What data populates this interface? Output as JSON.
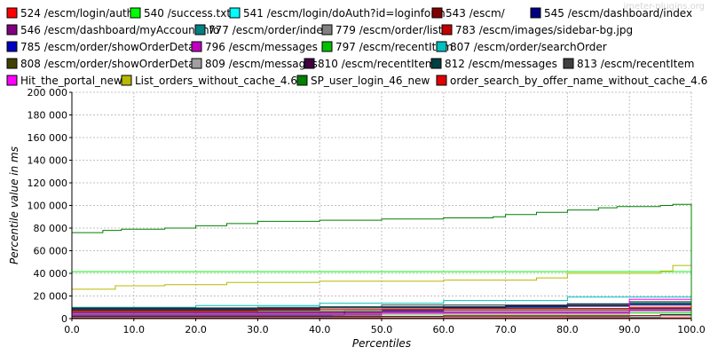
{
  "watermark": "jmeter-plugins.org",
  "chart_data": {
    "type": "line",
    "title": "",
    "xlabel": "Percentiles",
    "ylabel": "Percentile value in ms",
    "xlim": [
      0,
      100
    ],
    "ylim": [
      0,
      200000
    ],
    "x_ticks": [
      0,
      10,
      20,
      30,
      40,
      50,
      60,
      70,
      80,
      90,
      100
    ],
    "x_tick_labels": [
      "0.0",
      "10.0",
      "20.0",
      "30.0",
      "40.0",
      "50.0",
      "60.0",
      "70.0",
      "80.0",
      "90.0",
      "100.0"
    ],
    "y_ticks": [
      0,
      20000,
      40000,
      60000,
      80000,
      100000,
      120000,
      140000,
      160000,
      180000,
      200000
    ],
    "y_tick_labels": [
      "0",
      "20 000",
      "40 000",
      "60 000",
      "80 000",
      "100 000",
      "120 000",
      "140 000",
      "160 000",
      "180 000",
      "200 000"
    ],
    "grid": true,
    "legend_position": "top",
    "series": [
      {
        "name": "524 /escm/login/auth",
        "color": "#ff0000",
        "points": [
          [
            0,
            1500
          ],
          [
            50,
            1800
          ],
          [
            90,
            2500
          ],
          [
            100,
            3500
          ]
        ]
      },
      {
        "name": "540 /success.txt",
        "color": "#00ff00",
        "points": [
          [
            0,
            41500
          ],
          [
            100,
            41500
          ]
        ]
      },
      {
        "name": "541 /escm/login/doAuth?id=loginform",
        "color": "#00ffff",
        "points": [
          [
            0,
            900
          ],
          [
            80,
            1200
          ],
          [
            95,
            3000
          ],
          [
            100,
            4500
          ]
        ]
      },
      {
        "name": "543 /escm/",
        "color": "#800000",
        "points": [
          [
            0,
            2000
          ],
          [
            60,
            2500
          ],
          [
            95,
            3500
          ],
          [
            100,
            4000
          ]
        ]
      },
      {
        "name": "545 /escm/dashboard/index",
        "color": "#000080",
        "points": [
          [
            0,
            9000
          ],
          [
            40,
            10000
          ],
          [
            70,
            11000
          ],
          [
            90,
            12000
          ],
          [
            100,
            13000
          ]
        ]
      },
      {
        "name": "546 /escm/dashboard/myAccountInfo",
        "color": "#800080",
        "points": [
          [
            0,
            5000
          ],
          [
            50,
            6000
          ],
          [
            90,
            7000
          ],
          [
            100,
            9000
          ]
        ]
      },
      {
        "name": "777 /escm/order/index",
        "color": "#008080",
        "points": [
          [
            0,
            8000
          ],
          [
            30,
            10000
          ],
          [
            60,
            12000
          ],
          [
            90,
            14000
          ],
          [
            100,
            15000
          ]
        ]
      },
      {
        "name": "779 /escm/order/list",
        "color": "#808080",
        "points": [
          [
            0,
            6500
          ],
          [
            50,
            8000
          ],
          [
            100,
            10000
          ]
        ]
      },
      {
        "name": "783 /escm/images/sidebar-bg.jpg",
        "color": "#c00000",
        "points": [
          [
            0,
            500
          ],
          [
            80,
            700
          ],
          [
            100,
            1500
          ]
        ]
      },
      {
        "name": "785 /escm/order/showOrderDetail",
        "color": "#0000c0",
        "points": [
          [
            0,
            2500
          ],
          [
            42,
            3000
          ],
          [
            44,
            7000
          ],
          [
            60,
            10000
          ],
          [
            80,
            13000
          ],
          [
            100,
            14000
          ]
        ]
      },
      {
        "name": "796 /escm/messages",
        "color": "#c000c0",
        "points": [
          [
            0,
            4500
          ],
          [
            50,
            6000
          ],
          [
            90,
            8000
          ],
          [
            100,
            10000
          ]
        ]
      },
      {
        "name": "797 /escm/recentItem",
        "color": "#00c000",
        "points": [
          [
            0,
            3000
          ],
          [
            50,
            4000
          ],
          [
            90,
            5000
          ],
          [
            100,
            6000
          ]
        ]
      },
      {
        "name": "807 /escm/order/searchOrder",
        "color": "#00c0c0",
        "points": [
          [
            0,
            10000
          ],
          [
            20,
            11500
          ],
          [
            40,
            13500
          ],
          [
            60,
            16000
          ],
          [
            80,
            19000
          ],
          [
            100,
            21000
          ]
        ]
      },
      {
        "name": "808 /escm/order/showOrderDetail",
        "color": "#404000",
        "points": [
          [
            0,
            6000
          ],
          [
            50,
            7500
          ],
          [
            90,
            9000
          ],
          [
            100,
            11000
          ]
        ]
      },
      {
        "name": "809 /escm/messages",
        "color": "#a0a0a0",
        "points": [
          [
            0,
            7000
          ],
          [
            50,
            8500
          ],
          [
            90,
            10000
          ],
          [
            100,
            12000
          ]
        ]
      },
      {
        "name": "810 /escm/recentItem",
        "color": "#400040",
        "points": [
          [
            0,
            7500
          ],
          [
            40,
            9500
          ],
          [
            70,
            11500
          ],
          [
            90,
            13000
          ],
          [
            100,
            14000
          ]
        ]
      },
      {
        "name": "812 /escm/messages",
        "color": "#004040",
        "points": [
          [
            0,
            8500
          ],
          [
            40,
            10500
          ],
          [
            80,
            13000
          ],
          [
            100,
            14500
          ]
        ]
      },
      {
        "name": "813 /escm/recentItem",
        "color": "#404040",
        "points": [
          [
            0,
            9500
          ],
          [
            50,
            12000
          ],
          [
            90,
            15000
          ],
          [
            100,
            18000
          ]
        ]
      },
      {
        "name": "Hit_the_portal_new",
        "color": "#ff00ff",
        "points": [
          [
            0,
            3500
          ],
          [
            50,
            5000
          ],
          [
            90,
            17000
          ],
          [
            100,
            22000
          ]
        ]
      },
      {
        "name": "List_orders_without_cache_4.6",
        "color": "#b8b800",
        "points": [
          [
            0,
            26000
          ],
          [
            5,
            26000
          ],
          [
            7,
            29000
          ],
          [
            15,
            30000
          ],
          [
            25,
            32000
          ],
          [
            40,
            33000
          ],
          [
            60,
            34000
          ],
          [
            75,
            36000
          ],
          [
            80,
            40000
          ],
          [
            95,
            42000
          ],
          [
            97,
            47000
          ],
          [
            100,
            48000
          ]
        ]
      },
      {
        "name": "SP_user_login_46_new",
        "color": "#008000",
        "points": [
          [
            0,
            76000
          ],
          [
            3,
            76000
          ],
          [
            5,
            78000
          ],
          [
            8,
            79000
          ],
          [
            15,
            80000
          ],
          [
            20,
            82000
          ],
          [
            25,
            84000
          ],
          [
            30,
            86000
          ],
          [
            40,
            87000
          ],
          [
            50,
            88000
          ],
          [
            60,
            89000
          ],
          [
            68,
            90000
          ],
          [
            70,
            92000
          ],
          [
            75,
            94000
          ],
          [
            80,
            96000
          ],
          [
            85,
            98000
          ],
          [
            88,
            99000
          ],
          [
            95,
            100000
          ],
          [
            97,
            101000
          ],
          [
            99.6,
            101000
          ],
          [
            100,
            0
          ]
        ]
      },
      {
        "name": "order_search_by_offer_name_without_cache_4.6",
        "color": "#e00000",
        "points": [
          [
            0,
            7000
          ],
          [
            30,
            8000
          ],
          [
            60,
            9000
          ],
          [
            90,
            10000
          ],
          [
            100,
            12000
          ]
        ]
      }
    ]
  }
}
